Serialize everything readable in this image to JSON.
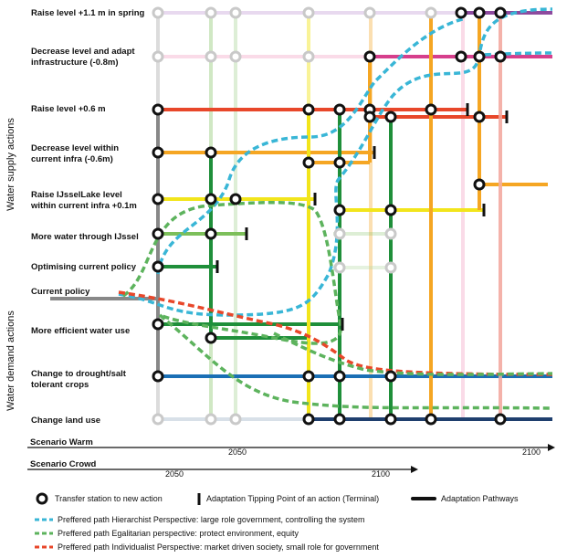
{
  "side_labels": {
    "supply": "Water supply actions",
    "demand": "Water demand actions"
  },
  "actions": [
    {
      "id": "raise11",
      "lines": [
        "Raise level +1.1 m in spring"
      ],
      "color": "#c8a2d8"
    },
    {
      "id": "decr08",
      "lines": [
        "Decrease level and adapt",
        "infrastructure (-0.8m)"
      ],
      "color": "#f4a7c8"
    },
    {
      "id": "raise06",
      "lines": [
        "Raise level +0.6 m"
      ],
      "color": "#e8472a"
    },
    {
      "id": "decr06",
      "lines": [
        "Decrease level within",
        "current infra (-0.6m)"
      ],
      "color": "#f5a623"
    },
    {
      "id": "raise01",
      "lines": [
        "Raise IJsselLake level",
        "within current infra +0.1m"
      ],
      "color": "#f2e51b"
    },
    {
      "id": "ijssel",
      "lines": [
        "More water through IJssel"
      ],
      "color": "#7cbf5a"
    },
    {
      "id": "optim",
      "lines": [
        "Optimising current policy"
      ],
      "color": "#b6dba6"
    },
    {
      "id": "current",
      "lines": [
        "Current policy"
      ],
      "color": "#888888"
    },
    {
      "id": "effic",
      "lines": [
        "More efficient water use"
      ],
      "color": "#1f8f3a"
    },
    {
      "id": "crops",
      "lines": [
        "Change to drought/salt",
        "tolerant crops"
      ],
      "color": "#1a6fb5"
    },
    {
      "id": "landuse",
      "lines": [
        "Change land use"
      ],
      "color": "#1f3f6e"
    }
  ],
  "scenarios": {
    "warm": {
      "label": "Scenario Warm",
      "ticks": [
        "2050",
        "2100"
      ]
    },
    "crowd": {
      "label": "Scenario Crowd",
      "ticks": [
        "2050",
        "2100"
      ]
    }
  },
  "legend": {
    "transfer": "Transfer station to new action",
    "tipping": "Adaptation Tipping Point of an action (Terminal)",
    "pathways": "Adaptation Pathways",
    "hierarchist": "Preffered path Hierarchist Perspective: large role government, controlling the system",
    "egalitarian": "Preffered path Egalitarian perspective: protect environment, equity",
    "individualist": "Preffered path Individualist Perspective: market driven society, small role for government"
  },
  "perspective_colors": {
    "hierarchist": "#39b6d6",
    "egalitarian": "#5db35d",
    "individualist": "#e8472a"
  }
}
